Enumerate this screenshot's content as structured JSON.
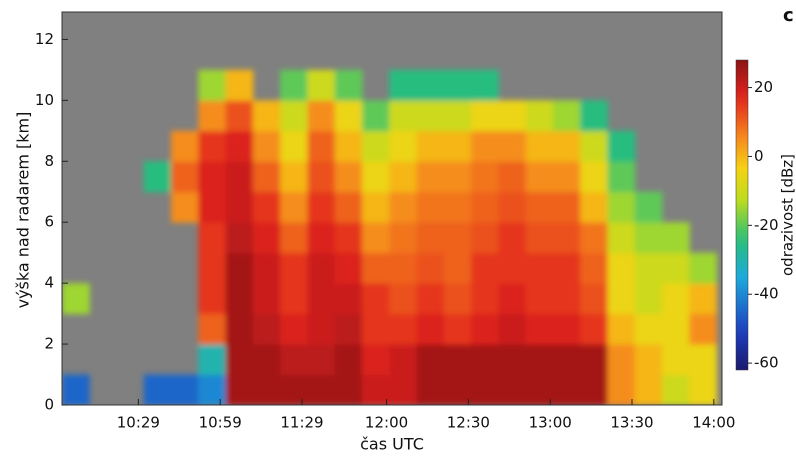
{
  "chart_data": {
    "type": "heatmap",
    "panel_label": "c",
    "xlabel": "čas UTC",
    "ylabel": "výška nad radarem [km]",
    "colorbar_label": "odrazivost [dBz]",
    "background": "#808080",
    "xlim": [
      601,
      843
    ],
    "xticks": [
      {
        "value": 629,
        "label": "10:29"
      },
      {
        "value": 659,
        "label": "10:59"
      },
      {
        "value": 689,
        "label": "11:29"
      },
      {
        "value": 720,
        "label": "12:00"
      },
      {
        "value": 750,
        "label": "12:30"
      },
      {
        "value": 780,
        "label": "13:00"
      },
      {
        "value": 810,
        "label": "13:30"
      },
      {
        "value": 840,
        "label": "14:00"
      }
    ],
    "ylim": [
      0,
      12.9
    ],
    "yticks": [
      0,
      2,
      4,
      6,
      8,
      10,
      12
    ],
    "clim": [
      -62,
      28
    ],
    "cticks": [
      -60,
      -40,
      -20,
      0,
      20
    ],
    "x_edges": [
      601,
      611,
      621,
      631,
      641,
      651,
      661,
      671,
      681,
      691,
      701,
      711,
      721,
      731,
      741,
      751,
      761,
      771,
      781,
      791,
      801,
      811,
      821,
      831,
      841
    ],
    "y_edges": [
      0,
      1,
      2,
      3,
      4,
      5,
      6,
      7,
      8,
      9,
      10,
      11
    ],
    "z": [
      [
        -45,
        null,
        null,
        -45,
        -45,
        -40,
        25,
        25,
        25,
        25,
        25,
        20,
        20,
        25,
        25,
        25,
        25,
        25,
        25,
        25,
        5,
        0,
        -10,
        -5
      ],
      [
        null,
        null,
        null,
        null,
        null,
        -30,
        25,
        25,
        22,
        22,
        25,
        18,
        20,
        25,
        25,
        25,
        25,
        25,
        25,
        25,
        5,
        0,
        -5,
        -5
      ],
      [
        null,
        null,
        null,
        null,
        null,
        10,
        25,
        22,
        18,
        20,
        22,
        15,
        15,
        18,
        15,
        18,
        20,
        18,
        18,
        15,
        0,
        -5,
        -5,
        5
      ],
      [
        -15,
        null,
        null,
        null,
        null,
        15,
        25,
        20,
        15,
        20,
        20,
        15,
        12,
        15,
        12,
        15,
        18,
        15,
        15,
        12,
        -5,
        -10,
        -5,
        0
      ],
      [
        null,
        null,
        null,
        null,
        null,
        15,
        25,
        20,
        15,
        20,
        18,
        10,
        10,
        12,
        10,
        15,
        15,
        15,
        15,
        10,
        -5,
        -10,
        -10,
        -15
      ],
      [
        null,
        null,
        null,
        null,
        null,
        15,
        22,
        18,
        10,
        18,
        15,
        5,
        8,
        10,
        10,
        12,
        15,
        12,
        12,
        8,
        -10,
        -15,
        -15,
        null
      ],
      [
        null,
        null,
        null,
        null,
        5,
        18,
        20,
        15,
        5,
        15,
        10,
        0,
        5,
        8,
        8,
        10,
        12,
        10,
        10,
        0,
        -15,
        -20,
        null,
        null
      ],
      [
        null,
        null,
        null,
        -25,
        10,
        18,
        20,
        10,
        0,
        12,
        5,
        -5,
        0,
        5,
        5,
        8,
        10,
        5,
        5,
        -5,
        -20,
        null,
        null,
        null
      ],
      [
        null,
        null,
        null,
        null,
        5,
        15,
        18,
        5,
        -5,
        10,
        0,
        -10,
        -5,
        0,
        0,
        5,
        5,
        0,
        0,
        -10,
        -25,
        null,
        null,
        null
      ],
      [
        null,
        null,
        null,
        null,
        null,
        5,
        12,
        0,
        -10,
        5,
        -5,
        -20,
        -10,
        -10,
        -10,
        -5,
        -5,
        -10,
        -15,
        -25,
        null,
        null,
        null,
        null
      ],
      [
        null,
        null,
        null,
        null,
        null,
        -15,
        0,
        null,
        -20,
        -10,
        -20,
        null,
        -25,
        -25,
        -25,
        -25,
        null,
        null,
        null,
        null,
        null,
        null,
        null,
        null
      ]
    ]
  }
}
